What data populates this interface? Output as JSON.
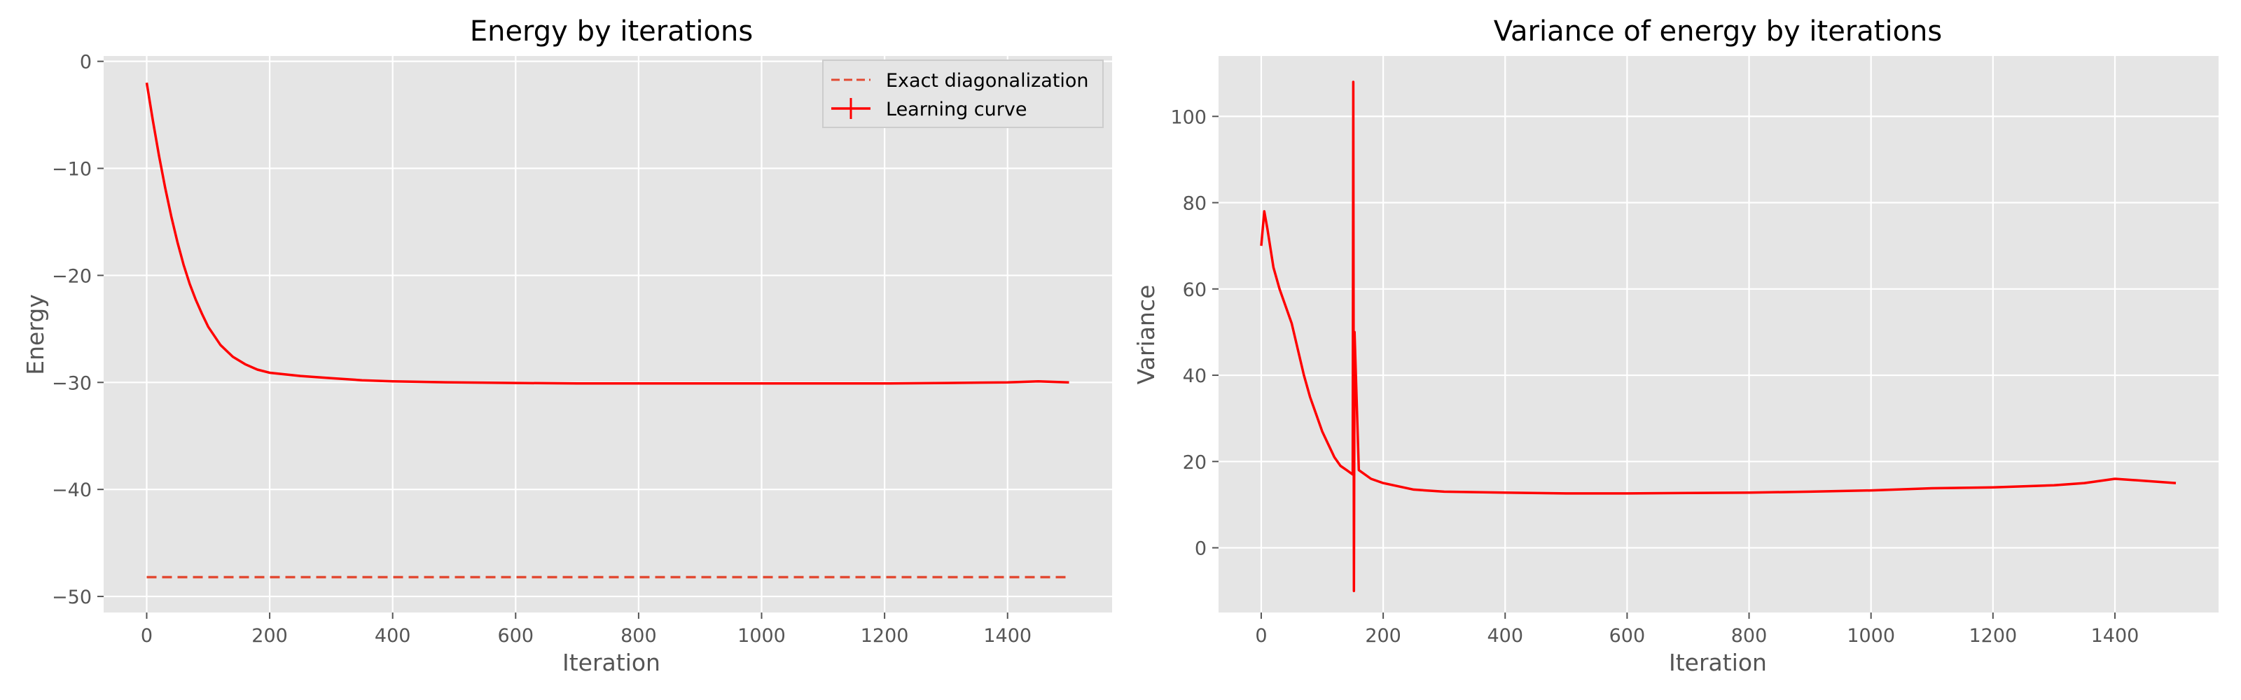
{
  "chart_data": [
    {
      "type": "line",
      "title": "Energy by iterations",
      "xlabel": "Iteration",
      "ylabel": "Energy",
      "xlim": [
        -70,
        1570
      ],
      "ylim": [
        -51.5,
        0.5
      ],
      "xticks": [
        0,
        200,
        400,
        600,
        800,
        1000,
        1200,
        1400
      ],
      "yticks": [
        0,
        -10,
        -20,
        -30,
        -40,
        -50
      ],
      "xtick_labels": [
        "0",
        "200",
        "400",
        "600",
        "800",
        "1000",
        "1200",
        "1400"
      ],
      "ytick_labels": [
        "0",
        "−10",
        "−20",
        "−30",
        "−40",
        "−50"
      ],
      "grid": true,
      "legend_position": "top-right",
      "series": [
        {
          "name": "Exact diagonalization",
          "style": "dashed",
          "color": "#e24a33",
          "x": [
            0,
            1500
          ],
          "y": [
            -48.2,
            -48.2
          ]
        },
        {
          "name": "Learning curve",
          "style": "solid-errorbar",
          "color": "#ff0000",
          "x": [
            0,
            10,
            20,
            30,
            40,
            50,
            60,
            70,
            80,
            90,
            100,
            120,
            140,
            160,
            180,
            200,
            250,
            300,
            350,
            400,
            500,
            600,
            700,
            800,
            900,
            1000,
            1100,
            1200,
            1300,
            1400,
            1450,
            1500
          ],
          "y": [
            -2.0,
            -5.5,
            -8.8,
            -11.8,
            -14.5,
            -16.9,
            -19.0,
            -20.8,
            -22.3,
            -23.6,
            -24.8,
            -26.5,
            -27.6,
            -28.3,
            -28.8,
            -29.1,
            -29.4,
            -29.6,
            -29.8,
            -29.9,
            -30.0,
            -30.05,
            -30.1,
            -30.1,
            -30.1,
            -30.1,
            -30.1,
            -30.1,
            -30.05,
            -30.0,
            -29.9,
            -30.0
          ]
        }
      ]
    },
    {
      "type": "line",
      "title": "Variance of energy by iterations",
      "xlabel": "Iteration",
      "ylabel": "Variance",
      "xlim": [
        -70,
        1570
      ],
      "ylim": [
        -15,
        114
      ],
      "xticks": [
        0,
        200,
        400,
        600,
        800,
        1000,
        1200,
        1400
      ],
      "yticks": [
        0,
        20,
        40,
        60,
        80,
        100
      ],
      "xtick_labels": [
        "0",
        "200",
        "400",
        "600",
        "800",
        "1000",
        "1200",
        "1400"
      ],
      "ytick_labels": [
        "0",
        "20",
        "40",
        "60",
        "80",
        "100"
      ],
      "grid": true,
      "series": [
        {
          "style": "solid",
          "color": "#ff0000",
          "x": [
            0,
            5,
            10,
            20,
            30,
            40,
            50,
            60,
            70,
            80,
            90,
            100,
            110,
            120,
            130,
            140,
            150,
            151,
            152,
            153,
            160,
            180,
            200,
            250,
            300,
            400,
            500,
            600,
            700,
            800,
            900,
            1000,
            1100,
            1200,
            1300,
            1350,
            1400,
            1450,
            1500
          ],
          "y": [
            70,
            78,
            74,
            65,
            60,
            56,
            52,
            46,
            40,
            35,
            31,
            27,
            24,
            21,
            19,
            18,
            17,
            108,
            -10,
            50,
            18,
            16,
            15,
            13.5,
            13,
            12.8,
            12.6,
            12.6,
            12.7,
            12.8,
            13,
            13.3,
            13.8,
            14,
            14.5,
            15,
            16,
            15.5,
            15
          ]
        }
      ]
    }
  ]
}
